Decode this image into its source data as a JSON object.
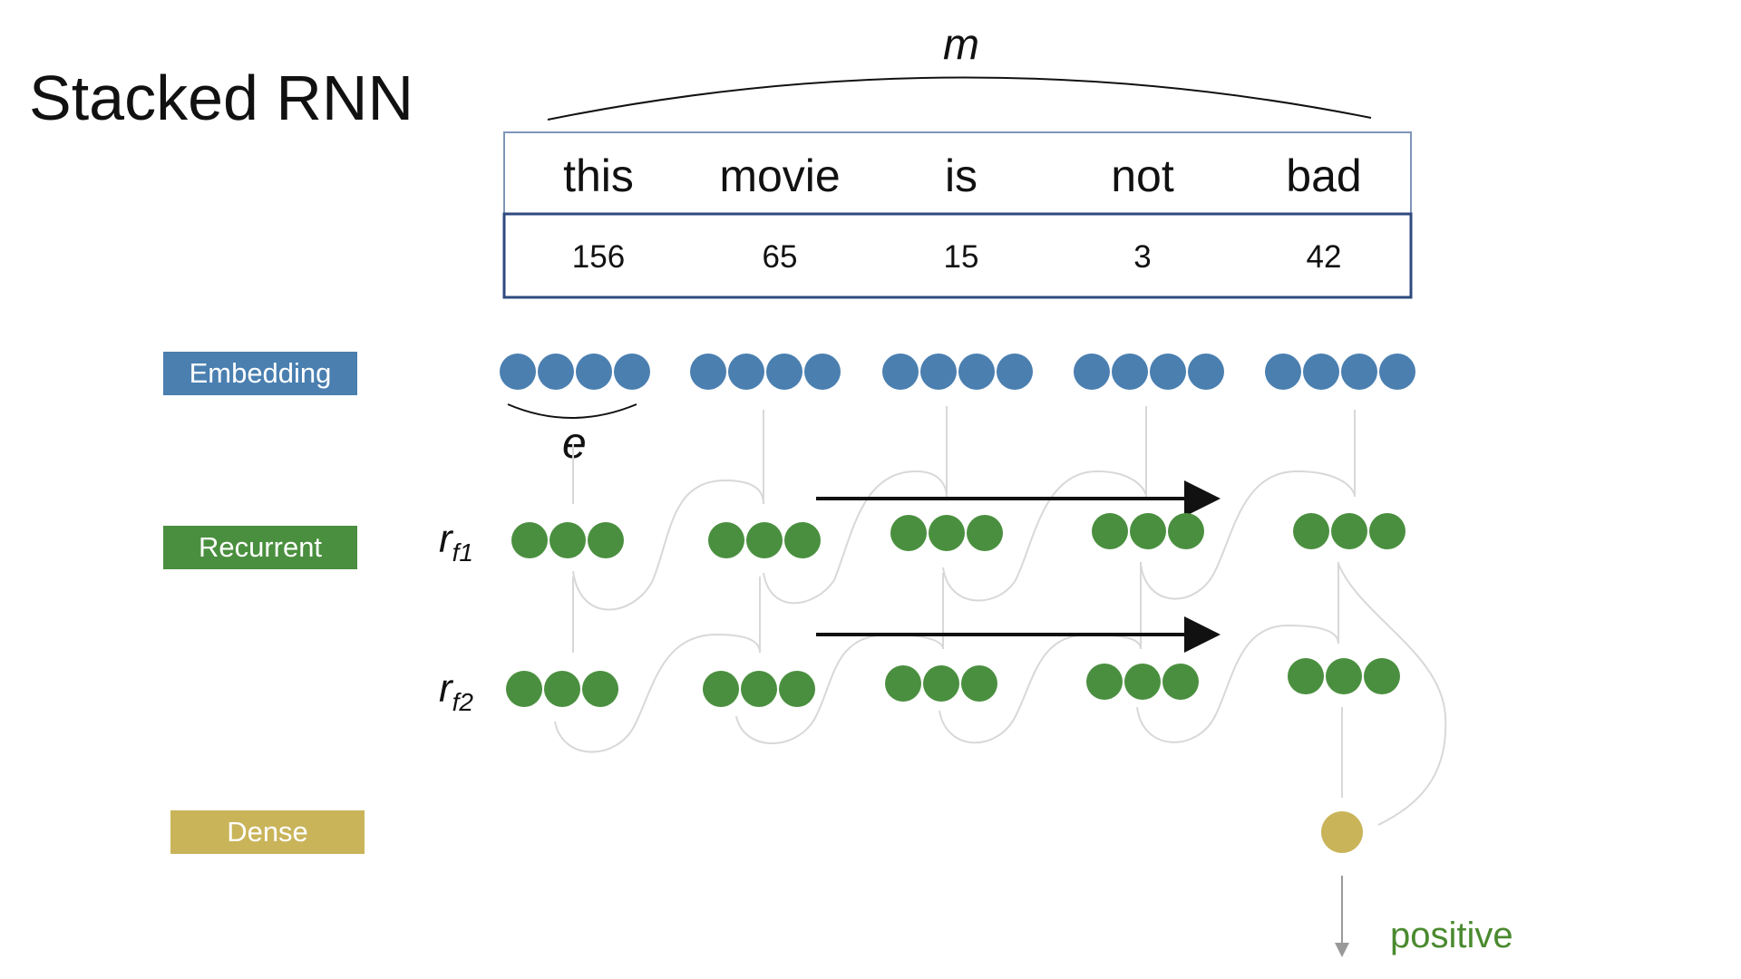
{
  "title": "Stacked RNN",
  "m_label": "m",
  "e_label": "e",
  "words": [
    "this",
    "movie",
    "is",
    "not",
    "bad"
  ],
  "ids": [
    "156",
    "65",
    "15",
    "3",
    "42"
  ],
  "layers": {
    "embedding": "Embedding",
    "recurrent": "Recurrent",
    "dense": "Dense"
  },
  "rnn_labels": {
    "r1_base": "r",
    "r1_sub": "f1",
    "r2_base": "r",
    "r2_sub": "f2"
  },
  "output": "positive",
  "colors": {
    "embedding": "#4a7fb0",
    "recurrent": "#4a8f3f",
    "dense": "#c9b45a",
    "table_border": "#2f4a7f"
  }
}
